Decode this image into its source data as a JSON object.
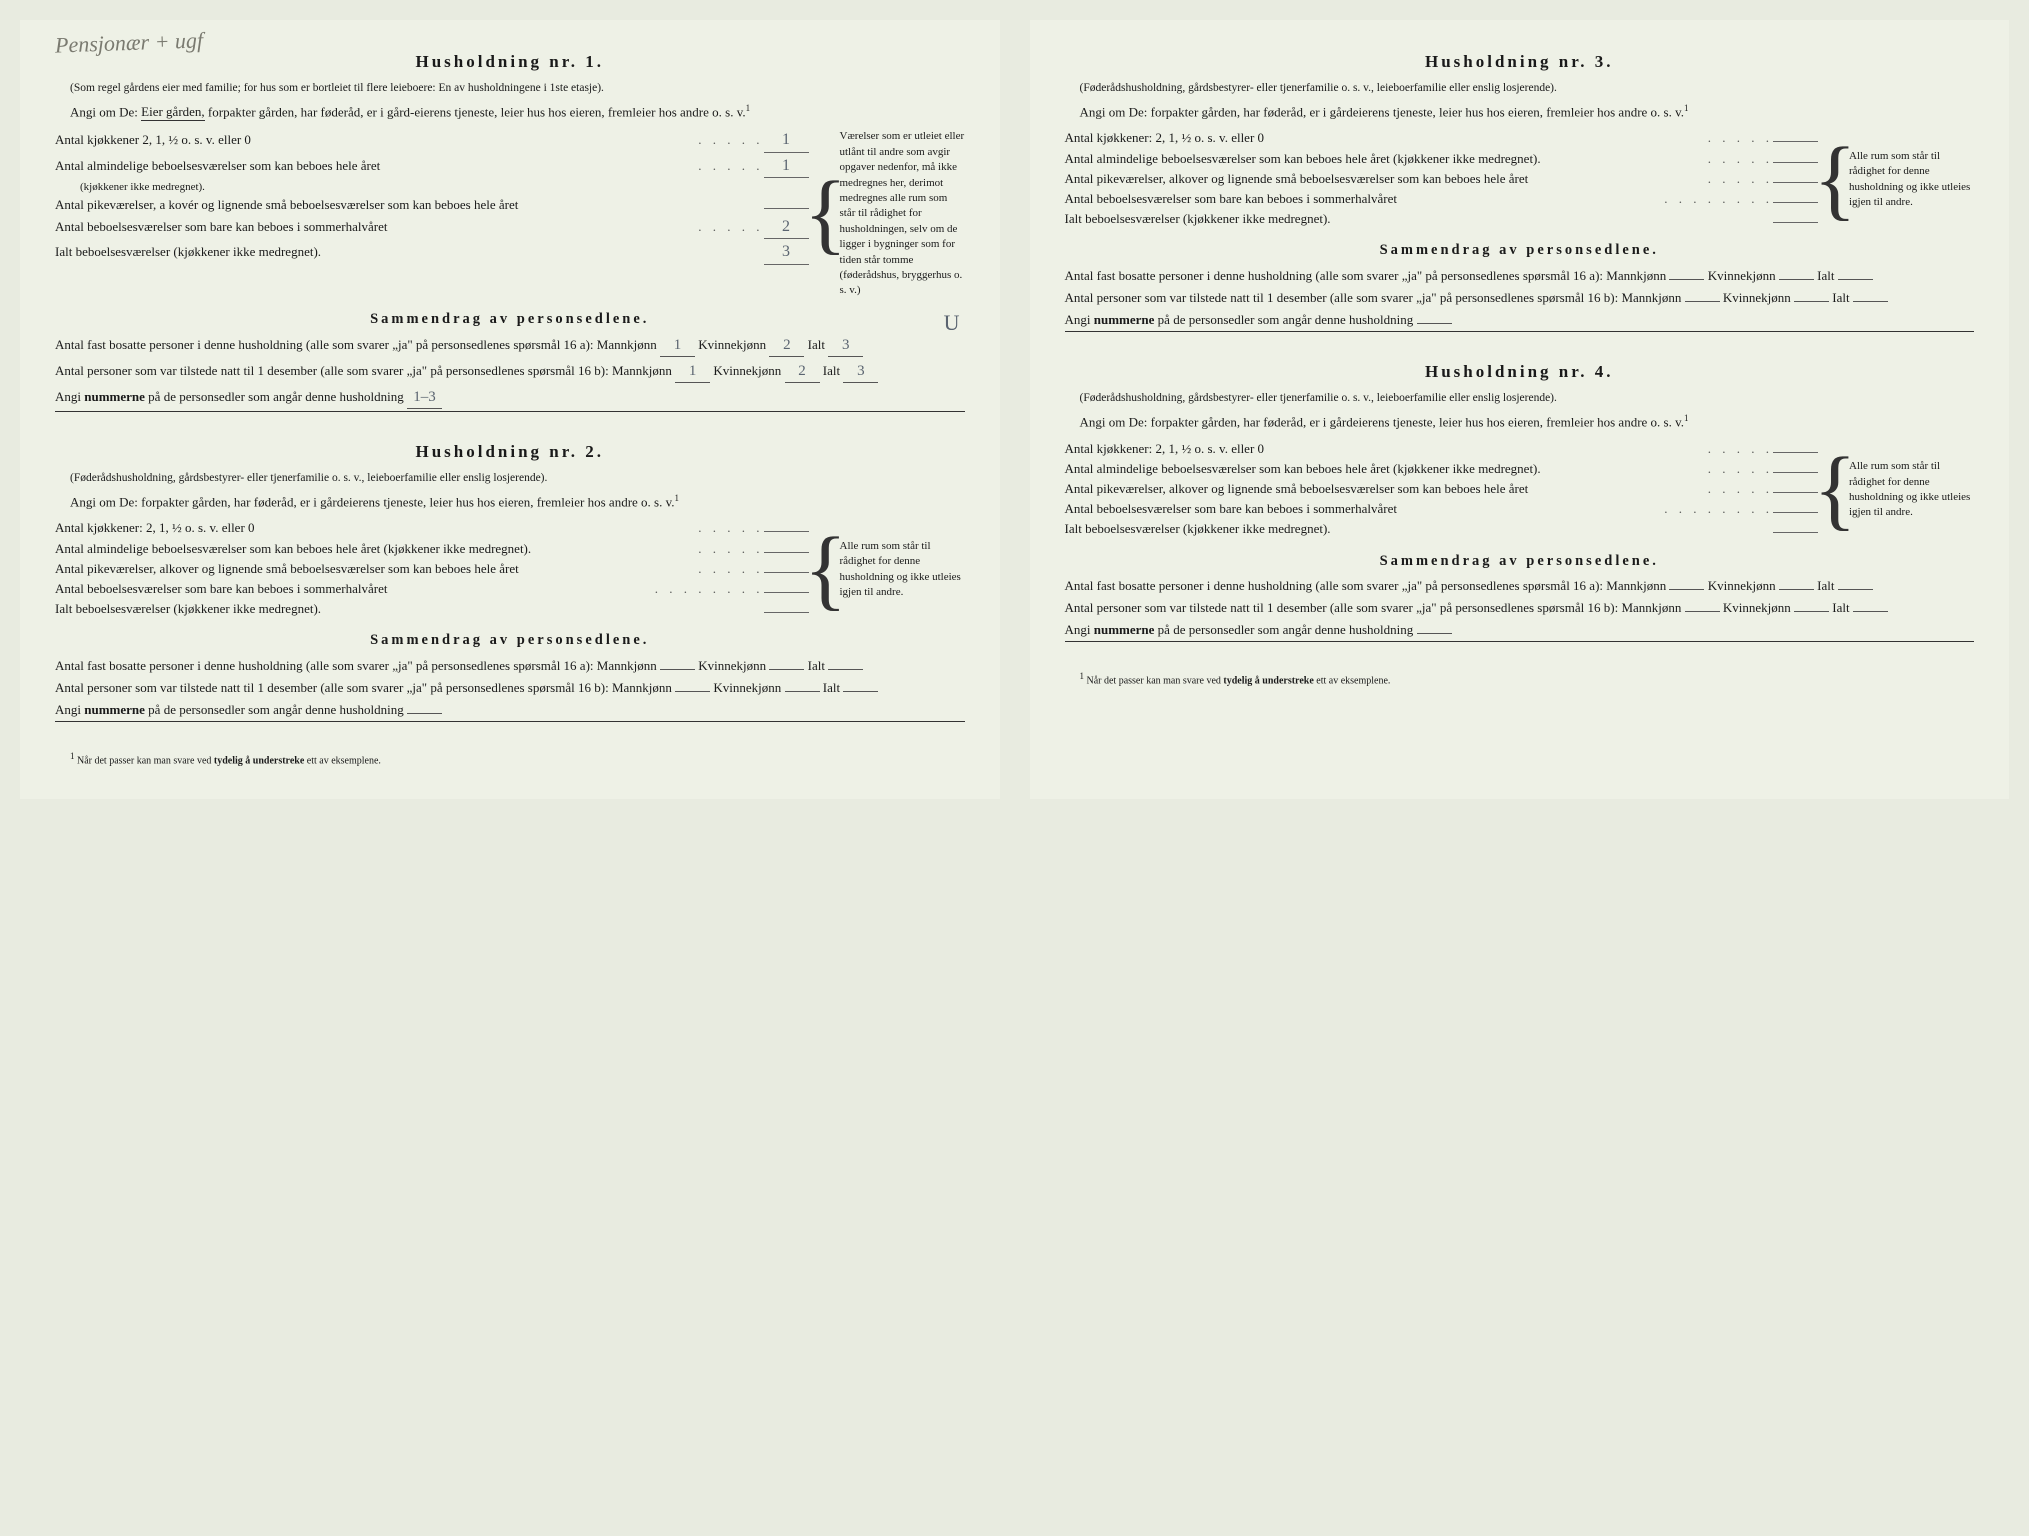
{
  "handwritten_top": "Pensjonær + ugf",
  "handwritten_u": "U",
  "households": [
    {
      "title": "Husholdning nr. 1.",
      "subtitle": "(Som regel gårdens eier med familie; for hus som er bortleiet til flere leieboere: En av husholdningene i 1ste etasje).",
      "angi_prefix": "Angi om De:",
      "angi_eier": "Eier gården,",
      "angi_rest": "forpakter gården, har føderåd, er i gård-eierens tjeneste, leier hus hos eieren, fremleier hos andre o. s. v.",
      "rooms": {
        "kitchen_label": "Antal kjøkkener 2, 1, ½ o. s. v. eller 0",
        "kitchen_value": "1",
        "ordinary_label": "Antal almindelige beboelsesværelser som kan beboes hele året",
        "ordinary_sub": "(kjøkkener ikke medregnet).",
        "ordinary_value": "1",
        "pike_label": "Antal pikeværelser, a kovér og lignende små beboelsesværelser som kan beboes hele året",
        "pike_value": "",
        "summer_label": "Antal beboelsesværelser som bare kan beboes i sommerhalvåret",
        "summer_value": "2",
        "total_label": "Ialt beboelsesværelser (kjøkkener ikke medregnet).",
        "total_value": "3"
      },
      "side_note": "Værelser som er utleiet eller utlånt til andre som avgir opgaver nedenfor, må ikke medregnes her, derimot medregnes alle rum som står til rådighet for husholdningen, selv om de ligger i bygninger som for tiden står tomme (føderådshus, bryggerhus o. s. v.)",
      "summary_title": "Sammendrag av personsedlene.",
      "line16a_prefix": "Antal fast bosatte personer i denne husholdning (alle som svarer „ja\" på personsedlenes spørsmål 16 a):",
      "mann_label": "Mannkjønn",
      "kvinne_label": "Kvinnekjønn",
      "ialt_label": "Ialt",
      "mann_a": "1",
      "kvinne_a": "2",
      "ialt_a": "3",
      "line16b_prefix": "Antal personer som var tilstede natt til 1 desember (alle som svarer „ja\" på personsedlenes spørsmål 16 b):",
      "mann_b": "1",
      "kvinne_b": "2",
      "ialt_b": "3",
      "nummer_label": "Angi",
      "nummer_bold": "nummerne",
      "nummer_rest": "på de personsedler som angår denne husholdning",
      "nummer_value": "1–3"
    },
    {
      "title": "Husholdning nr. 2.",
      "subtitle": "(Føderådshusholdning, gårdsbestyrer- eller tjenerfamilie o. s. v., leieboerfamilie eller enslig losjerende).",
      "angi_prefix": "Angi om De:",
      "angi_rest": "forpakter gården, har føderåd, er i gårdeierens tjeneste, leier hus hos eieren, fremleier hos andre o. s. v.",
      "rooms": {
        "kitchen_label": "Antal kjøkkener: 2, 1, ½ o. s. v. eller 0",
        "kitchen_value": "",
        "ordinary_label": "Antal almindelige beboelsesværelser som kan beboes hele året (kjøkkener ikke medregnet).",
        "ordinary_value": "",
        "pike_label": "Antal pikeværelser, alkover og lignende små beboelsesværelser som kan beboes hele året",
        "pike_value": "",
        "summer_label": "Antal beboelsesværelser som bare kan beboes i sommerhalvåret",
        "summer_value": "",
        "total_label": "Ialt beboelsesværelser (kjøkkener ikke medregnet).",
        "total_value": ""
      },
      "side_note": "Alle rum som står til rådighet for denne husholdning og ikke utleies igjen til andre.",
      "summary_title": "Sammendrag av personsedlene.",
      "line16a_prefix": "Antal fast bosatte personer i denne husholdning (alle som svarer „ja\" på personsedlenes spørsmål 16 a):",
      "mann_label": "Mannkjønn",
      "kvinne_label": "Kvinnekjønn",
      "ialt_label": "Ialt",
      "mann_a": "",
      "kvinne_a": "",
      "ialt_a": "",
      "line16b_prefix": "Antal personer som var tilstede natt til 1 desember (alle som svarer „ja\" på personsedlenes spørsmål 16 b):",
      "mann_b": "",
      "kvinne_b": "",
      "ialt_b": "",
      "nummer_label": "Angi",
      "nummer_bold": "nummerne",
      "nummer_rest": "på de personsedler som angår denne husholdning",
      "nummer_value": ""
    },
    {
      "title": "Husholdning nr. 3.",
      "subtitle": "(Føderådshusholdning, gårdsbestyrer- eller tjenerfamilie o. s. v., leieboerfamilie eller enslig losjerende).",
      "angi_prefix": "Angi om De:",
      "angi_rest": "forpakter gården, har føderåd, er i gårdeierens tjeneste, leier hus hos eieren, fremleier hos andre o. s. v.",
      "rooms": {
        "kitchen_label": "Antal kjøkkener: 2, 1, ½ o. s. v. eller 0",
        "kitchen_value": "",
        "ordinary_label": "Antal almindelige beboelsesværelser som kan beboes hele året (kjøkkener ikke medregnet).",
        "ordinary_value": "",
        "pike_label": "Antal pikeværelser, alkover og lignende små beboelsesværelser som kan beboes hele året",
        "pike_value": "",
        "summer_label": "Antal beboelsesværelser som bare kan beboes i sommerhalvåret",
        "summer_value": "",
        "total_label": "Ialt beboelsesværelser (kjøkkener ikke medregnet).",
        "total_value": ""
      },
      "side_note": "Alle rum som står til rådighet for denne husholdning og ikke utleies igjen til andre.",
      "summary_title": "Sammendrag av personsedlene.",
      "line16a_prefix": "Antal fast bosatte personer i denne husholdning (alle som svarer „ja\" på personsedlenes spørsmål 16 a):",
      "mann_label": "Mannkjønn",
      "kvinne_label": "Kvinnekjønn",
      "ialt_label": "Ialt",
      "mann_a": "",
      "kvinne_a": "",
      "ialt_a": "",
      "line16b_prefix": "Antal personer som var tilstede natt til 1 desember (alle som svarer „ja\" på personsedlenes spørsmål 16 b):",
      "mann_b": "",
      "kvinne_b": "",
      "ialt_b": "",
      "nummer_label": "Angi",
      "nummer_bold": "nummerne",
      "nummer_rest": "på de personsedler som angår denne husholdning",
      "nummer_value": ""
    },
    {
      "title": "Husholdning nr. 4.",
      "subtitle": "(Føderådshusholdning, gårdsbestyrer- eller tjenerfamilie o. s. v., leieboerfamilie eller enslig losjerende).",
      "angi_prefix": "Angi om De:",
      "angi_rest": "forpakter gården, har føderåd, er i gårdeierens tjeneste, leier hus hos eieren, fremleier hos andre o. s. v.",
      "rooms": {
        "kitchen_label": "Antal kjøkkener: 2, 1, ½ o. s. v. eller 0",
        "kitchen_value": "",
        "ordinary_label": "Antal almindelige beboelsesværelser som kan beboes hele året (kjøkkener ikke medregnet).",
        "ordinary_value": "",
        "pike_label": "Antal pikeværelser, alkover og lignende små beboelsesværelser som kan beboes hele året",
        "pike_value": "",
        "summer_label": "Antal beboelsesværelser som bare kan beboes i sommerhalvåret",
        "summer_value": "",
        "total_label": "Ialt beboelsesværelser (kjøkkener ikke medregnet).",
        "total_value": ""
      },
      "side_note": "Alle rum som står til rådighet for denne husholdning og ikke utleies igjen til andre.",
      "summary_title": "Sammendrag av personsedlene.",
      "line16a_prefix": "Antal fast bosatte personer i denne husholdning (alle som svarer „ja\" på personsedlenes spørsmål 16 a):",
      "mann_label": "Mannkjønn",
      "kvinne_label": "Kvinnekjønn",
      "ialt_label": "Ialt",
      "mann_a": "",
      "kvinne_a": "",
      "ialt_a": "",
      "line16b_prefix": "Antal personer som var tilstede natt til 1 desember (alle som svarer „ja\" på personsedlenes spørsmål 16 b):",
      "mann_b": "",
      "kvinne_b": "",
      "ialt_b": "",
      "nummer_label": "Angi",
      "nummer_bold": "nummerne",
      "nummer_rest": "på de personsedler som angår denne husholdning",
      "nummer_value": ""
    }
  ],
  "footnote_marker": "1",
  "footnote_text": "Når det passer kan man svare ved",
  "footnote_bold": "tydelig å understreke",
  "footnote_rest": "ett av eksemplene.",
  "dots": ". . . . .",
  "dots_long": ". . . . . . . ."
}
